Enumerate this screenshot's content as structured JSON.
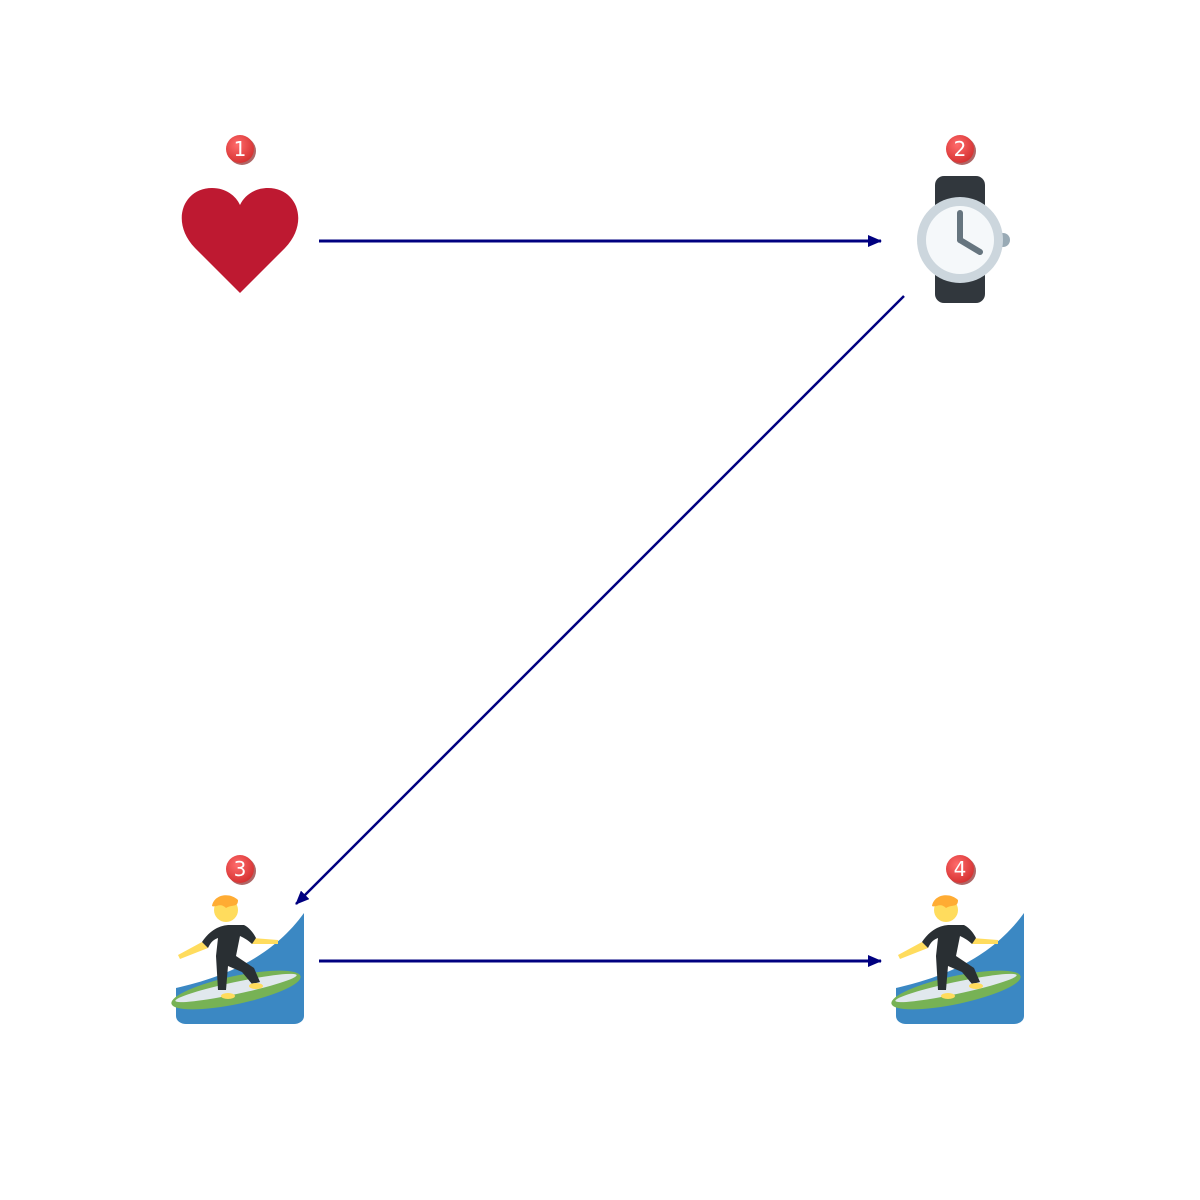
{
  "diagram": {
    "type": "flow",
    "arrow_color": "#000080",
    "badge_color": "#e53935",
    "nodes": [
      {
        "id": "1",
        "badge": "1",
        "icon": "red-heart-icon"
      },
      {
        "id": "2",
        "badge": "2",
        "icon": "wristwatch-icon"
      },
      {
        "id": "3",
        "badge": "3",
        "icon": "person-surfing-icon"
      },
      {
        "id": "4",
        "badge": "4",
        "icon": "person-surfing-icon"
      }
    ],
    "edges": [
      {
        "from": "1",
        "to": "2"
      },
      {
        "from": "2",
        "to": "3"
      },
      {
        "from": "3",
        "to": "4"
      }
    ]
  }
}
